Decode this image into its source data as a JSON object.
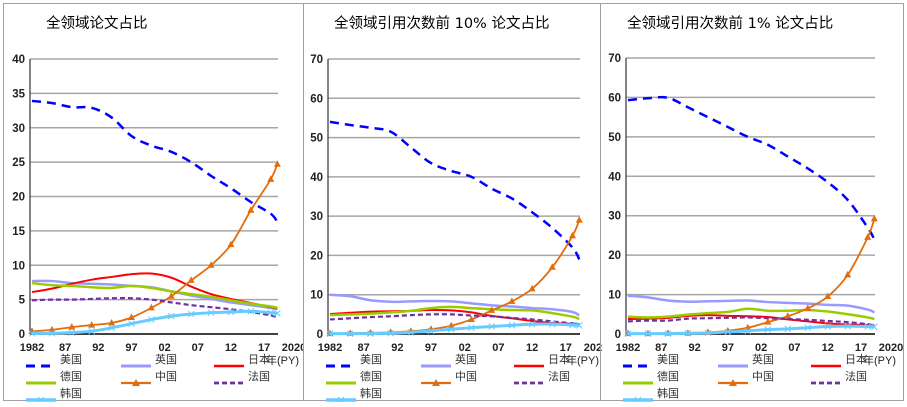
{
  "legend": {
    "usa": "美国",
    "uk": "英国",
    "japan": "日本",
    "germany": "德国",
    "china": "中国",
    "france": "法国",
    "korea": "韩国"
  },
  "colors": {
    "usa": "#0000FF",
    "uk": "#9999FF",
    "japan": "#FF0000",
    "germany": "#99CC00",
    "china": "#E46C0A",
    "france": "#7030A0",
    "korea": "#66CCFF"
  },
  "chart_data": [
    {
      "type": "line",
      "title": "全领域论文占比",
      "xlabel": "年(PY)",
      "x_ticks": [
        "1982",
        "87",
        "92",
        "97",
        "02",
        "07",
        "12",
        "17",
        "2020"
      ],
      "ylim": [
        0,
        40
      ],
      "y_ticks": [
        "0",
        "5",
        "10",
        "15",
        "20",
        "25",
        "30",
        "35",
        "40"
      ],
      "grid": true,
      "legend_position": "bottom",
      "x": [
        1982,
        1985,
        1988,
        1991,
        1994,
        1997,
        2000,
        2003,
        2006,
        2009,
        2012,
        2015,
        2018,
        2019
      ],
      "series": [
        {
          "key": "usa",
          "name": "美国",
          "values": [
            33.9,
            33.6,
            33.0,
            32.9,
            31.5,
            28.8,
            27.4,
            26.5,
            25.0,
            23.0,
            21.2,
            19.2,
            17.5,
            16.3
          ]
        },
        {
          "key": "uk",
          "name": "英国",
          "values": [
            7.7,
            7.7,
            7.4,
            7.3,
            7.2,
            7.0,
            6.8,
            6.2,
            5.6,
            5.1,
            4.6,
            4.2,
            3.8,
            3.6
          ]
        },
        {
          "key": "japan",
          "name": "日本",
          "values": [
            6.1,
            6.6,
            7.3,
            7.9,
            8.3,
            8.7,
            8.8,
            8.2,
            6.9,
            5.8,
            5.1,
            4.5,
            3.9,
            3.7
          ]
        },
        {
          "key": "germany",
          "name": "德国",
          "values": [
            7.4,
            7.1,
            7.0,
            6.8,
            6.7,
            7.0,
            6.7,
            6.2,
            5.8,
            5.4,
            4.9,
            4.4,
            4.0,
            3.8
          ]
        },
        {
          "key": "china",
          "name": "中国",
          "values": [
            0.4,
            0.6,
            1.0,
            1.3,
            1.6,
            2.4,
            3.8,
            5.5,
            7.8,
            10.0,
            13.0,
            18.0,
            22.5,
            24.7
          ]
        },
        {
          "key": "france",
          "name": "法国",
          "values": [
            4.9,
            5.0,
            5.0,
            5.1,
            5.2,
            5.2,
            5.0,
            4.6,
            4.2,
            3.9,
            3.6,
            3.2,
            2.7,
            2.4
          ]
        },
        {
          "key": "korea",
          "name": "韩国",
          "values": [
            0.1,
            0.1,
            0.2,
            0.4,
            0.9,
            1.5,
            2.1,
            2.6,
            2.9,
            3.1,
            3.2,
            3.3,
            3.1,
            3.0
          ]
        }
      ]
    },
    {
      "type": "line",
      "title": "全领域引用次数前 10% 论文占比",
      "xlabel": "年(PY)",
      "x_ticks": [
        "1982",
        "87",
        "92",
        "97",
        "02",
        "07",
        "12",
        "17",
        "2020"
      ],
      "ylim": [
        0,
        70
      ],
      "y_ticks": [
        "0",
        "10",
        "20",
        "30",
        "40",
        "50",
        "60",
        "70"
      ],
      "grid": true,
      "legend_position": "bottom",
      "x": [
        1982,
        1985,
        1988,
        1991,
        1994,
        1997,
        2000,
        2003,
        2006,
        2009,
        2012,
        2015,
        2018,
        2019
      ],
      "series": [
        {
          "key": "usa",
          "name": "美国",
          "values": [
            54.0,
            53.2,
            52.5,
            51.5,
            47.5,
            43.5,
            41.5,
            40.0,
            37.0,
            34.5,
            31.0,
            27.0,
            22.0,
            19.0
          ]
        },
        {
          "key": "uk",
          "name": "英国",
          "values": [
            10.0,
            9.6,
            8.6,
            8.2,
            8.3,
            8.4,
            8.3,
            7.8,
            7.3,
            7.0,
            6.6,
            6.3,
            5.6,
            4.7
          ]
        },
        {
          "key": "japan",
          "name": "日本",
          "values": [
            5.1,
            5.4,
            5.7,
            5.8,
            5.9,
            6.1,
            6.0,
            5.5,
            4.6,
            4.0,
            3.3,
            2.8,
            2.6,
            2.5
          ]
        },
        {
          "key": "germany",
          "name": "德国",
          "values": [
            4.8,
            5.0,
            5.2,
            5.5,
            5.9,
            6.6,
            6.9,
            6.6,
            6.3,
            6.1,
            6.0,
            5.3,
            4.4,
            3.8
          ]
        },
        {
          "key": "china",
          "name": "中国",
          "values": [
            0.1,
            0.2,
            0.3,
            0.4,
            0.7,
            1.2,
            2.1,
            3.7,
            6.0,
            8.3,
            11.5,
            17.0,
            25.0,
            29.0
          ]
        },
        {
          "key": "france",
          "name": "法国",
          "values": [
            3.7,
            4.0,
            4.3,
            4.5,
            4.8,
            5.0,
            5.0,
            4.7,
            4.5,
            4.1,
            3.7,
            3.2,
            2.7,
            2.5
          ]
        },
        {
          "key": "korea",
          "name": "韩国",
          "values": [
            0.1,
            0.1,
            0.1,
            0.2,
            0.4,
            0.8,
            1.2,
            1.6,
            1.9,
            2.2,
            2.5,
            2.5,
            2.3,
            2.2
          ]
        }
      ]
    },
    {
      "type": "line",
      "title": "全领域引用次数前 1% 论文占比",
      "xlabel": "年(PY)",
      "x_ticks": [
        "1982",
        "87",
        "92",
        "97",
        "02",
        "07",
        "12",
        "17",
        "2020"
      ],
      "ylim": [
        0,
        70
      ],
      "y_ticks": [
        "0",
        "10",
        "20",
        "30",
        "40",
        "50",
        "60",
        "70"
      ],
      "grid": true,
      "legend_position": "bottom",
      "x": [
        1982,
        1985,
        1988,
        1991,
        1994,
        1997,
        2000,
        2003,
        2006,
        2009,
        2012,
        2015,
        2018,
        2019
      ],
      "series": [
        {
          "key": "usa",
          "name": "美国",
          "values": [
            59.3,
            59.8,
            59.9,
            57.5,
            55.0,
            52.5,
            50.0,
            48.0,
            45.0,
            42.0,
            38.5,
            34.0,
            27.0,
            24.0
          ]
        },
        {
          "key": "uk",
          "name": "英国",
          "values": [
            9.7,
            9.3,
            8.5,
            8.2,
            8.3,
            8.4,
            8.5,
            8.1,
            7.9,
            7.7,
            7.4,
            7.2,
            6.2,
            5.5
          ]
        },
        {
          "key": "japan",
          "name": "日本",
          "values": [
            3.8,
            3.9,
            4.1,
            4.6,
            4.8,
            4.6,
            4.5,
            4.3,
            3.7,
            3.2,
            2.7,
            2.4,
            2.3,
            2.2
          ]
        },
        {
          "key": "germany",
          "name": "德国",
          "values": [
            4.4,
            4.2,
            4.4,
            4.9,
            5.3,
            5.6,
            6.4,
            5.9,
            5.9,
            6.1,
            5.7,
            5.0,
            4.2,
            3.8
          ]
        },
        {
          "key": "china",
          "name": "中国",
          "values": [
            0.1,
            0.1,
            0.2,
            0.2,
            0.4,
            0.8,
            1.6,
            3.0,
            4.5,
            6.5,
            9.5,
            15.0,
            24.5,
            29.2
          ]
        },
        {
          "key": "france",
          "name": "法国",
          "values": [
            3.2,
            3.4,
            3.4,
            3.9,
            4.0,
            4.1,
            4.2,
            4.0,
            3.8,
            3.6,
            3.3,
            3.0,
            2.5,
            2.2
          ]
        },
        {
          "key": "korea",
          "name": "韩国",
          "values": [
            0.1,
            0.1,
            0.1,
            0.2,
            0.3,
            0.5,
            0.8,
            1.1,
            1.3,
            1.6,
            1.9,
            2.0,
            1.9,
            1.8
          ]
        }
      ]
    }
  ]
}
